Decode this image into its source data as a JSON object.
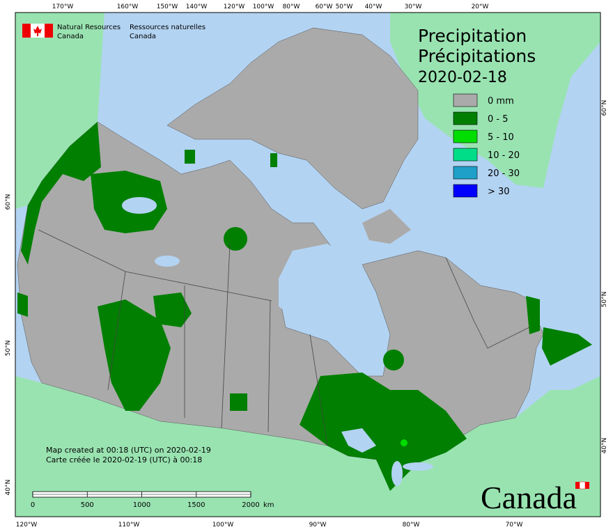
{
  "header": {
    "agency_en": [
      "Natural Resources",
      "Canada"
    ],
    "agency_fr": [
      "Ressources naturelles",
      "Canada"
    ]
  },
  "title": {
    "en": "Precipitation",
    "fr": "Précipitations",
    "date": "2020-02-18"
  },
  "legend": [
    {
      "label": "0 mm",
      "color": "#aaaaaa"
    },
    {
      "label": "0 - 5",
      "color": "#007f00"
    },
    {
      "label": "5 - 10",
      "color": "#00dd00"
    },
    {
      "label": "10 - 20",
      "color": "#00dd88"
    },
    {
      "label": "20 - 30",
      "color": "#1fa0c8"
    },
    {
      "label": "> 30",
      "color": "#0000ff"
    }
  ],
  "graticule": {
    "top": [
      "170°W",
      "160°W",
      "150°W",
      "140°W",
      "120°W",
      "100°W",
      "80°W",
      "60°W",
      "50°W",
      "40°W",
      "30°W",
      "20°W"
    ],
    "bottom": [
      "120°W",
      "110°W",
      "100°W",
      "90°W",
      "80°W",
      "70°W"
    ],
    "left": [
      "60°N",
      "50°N",
      "40°N"
    ],
    "right": [
      "60°N",
      "50°N",
      "40°N"
    ]
  },
  "footer": {
    "created_en": "Map created at 00:18 (UTC) on 2020-02-19",
    "created_fr": "Carte créée le 2020-02-19 (UTC) à 00:18"
  },
  "scale_bar": {
    "ticks": [
      0,
      500,
      1000,
      1500,
      2000
    ],
    "unit": "km"
  },
  "wordmark": "Canada"
}
